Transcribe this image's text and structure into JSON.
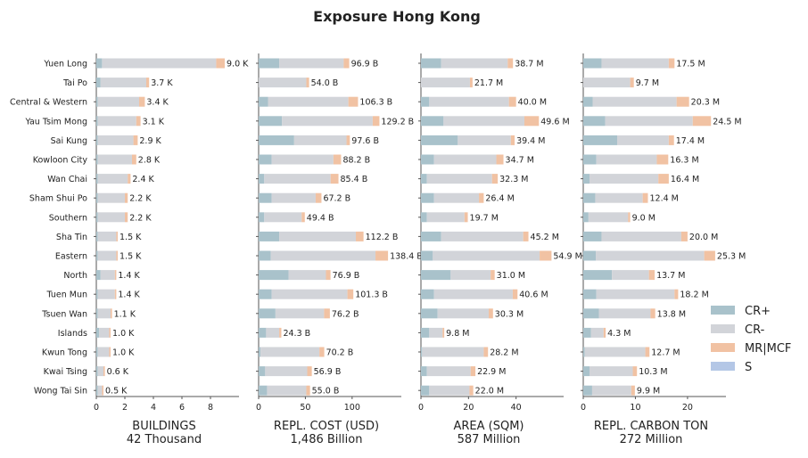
{
  "title": "Exposure Hong Kong",
  "colors": {
    "cr_plus": "#a9c2cb",
    "cr_minus": "#d2d4d9",
    "mr_mcf": "#f1c2a3",
    "s": "#b4c7e6",
    "axis": "#555555",
    "text": "#222222"
  },
  "legend": [
    {
      "key": "cr_plus",
      "label": "CR+"
    },
    {
      "key": "cr_minus",
      "label": "CR-"
    },
    {
      "key": "mr_mcf",
      "label": "MR|MCF"
    },
    {
      "key": "s",
      "label": "S"
    }
  ],
  "chart_data": {
    "type": "bar",
    "orientation": "horizontal",
    "stacked": true,
    "categories": [
      "Yuen Long",
      "Tai Po",
      "Central & Western",
      "Yau Tsim Mong",
      "Sai Kung",
      "Kowloon City",
      "Wan Chai",
      "Sham Shui Po",
      "Southern",
      "Sha Tin",
      "Eastern",
      "North",
      "Tuen Mun",
      "Tsuen Wan",
      "Islands",
      "Kwun Tong",
      "Kwai Tsing",
      "Wong Tai Sin"
    ],
    "panels": [
      {
        "xlabel": "BUILDINGS",
        "subtitle": "42 Thousand",
        "xlim": [
          0,
          9.5
        ],
        "xticks": [
          0,
          2,
          4,
          6,
          8
        ],
        "cr_plus": [
          0.4,
          0.3,
          0.1,
          0.1,
          0.1,
          0.1,
          0.1,
          0.1,
          0.1,
          0.1,
          0.1,
          0.3,
          0.1,
          0.1,
          0.2,
          0.1,
          0.1,
          0.1
        ],
        "cr_minus": [
          8.0,
          3.2,
          2.9,
          2.7,
          2.5,
          2.4,
          2.1,
          1.9,
          1.9,
          1.3,
          1.3,
          1.0,
          1.2,
          0.9,
          0.7,
          0.8,
          0.4,
          0.3
        ],
        "mr_mcf": [
          0.6,
          0.2,
          0.4,
          0.3,
          0.3,
          0.3,
          0.2,
          0.2,
          0.2,
          0.1,
          0.1,
          0.1,
          0.1,
          0.1,
          0.1,
          0.1,
          0.1,
          0.1
        ],
        "totals": [
          9.0,
          3.7,
          3.4,
          3.1,
          2.9,
          2.8,
          2.4,
          2.2,
          2.2,
          1.5,
          1.5,
          1.4,
          1.4,
          1.1,
          1.0,
          1.0,
          0.6,
          0.5
        ],
        "labels": [
          "9.0 K",
          "3.7 K",
          "3.4 K",
          "3.1 K",
          "2.9 K",
          "2.8 K",
          "2.4 K",
          "2.2 K",
          "2.2 K",
          "1.5 K",
          "1.5 K",
          "1.4 K",
          "1.4 K",
          "1.1 K",
          "1.0 K",
          "1.0 K",
          "0.6 K",
          "0.5 K"
        ]
      },
      {
        "xlabel": "REPL. COST (USD)",
        "subtitle": "1,486 Billion",
        "xlim": [
          0,
          145
        ],
        "xticks": [
          0,
          50,
          100
        ],
        "cr_plus": [
          22,
          0,
          10,
          25,
          38,
          14,
          6,
          14,
          6,
          22,
          13,
          32,
          14,
          18,
          8,
          2,
          7,
          9
        ],
        "cr_minus": [
          69,
          51,
          86,
          97,
          56,
          66,
          71,
          47,
          40,
          82,
          112,
          40,
          81,
          52,
          14,
          63,
          45,
          42
        ],
        "mr_mcf": [
          5.9,
          3.0,
          10.3,
          7.2,
          3.6,
          8.2,
          8.4,
          6.2,
          3.4,
          8.2,
          13.4,
          4.9,
          6.3,
          6.2,
          2.3,
          5.2,
          4.9,
          4.0
        ],
        "totals": [
          96.9,
          54.0,
          106.3,
          129.2,
          97.6,
          88.2,
          85.4,
          67.2,
          49.4,
          112.2,
          138.4,
          76.9,
          101.3,
          76.2,
          24.3,
          70.2,
          56.9,
          55.0
        ],
        "labels": [
          "96.9 B",
          "54.0 B",
          "106.3 B",
          "129.2 B",
          "97.6 B",
          "88.2 B",
          "85.4 B",
          "67.2 B",
          "49.4 B",
          "112.2 B",
          "138.4 B",
          "76.9 B",
          "101.3 B",
          "76.2 B",
          "24.3 B",
          "70.2 B",
          "56.9 B",
          "55.0 B"
        ]
      },
      {
        "xlabel": "AREA (SQM)",
        "subtitle": "587 Million",
        "xlim": [
          0,
          57
        ],
        "xticks": [
          0,
          20,
          40
        ],
        "cr_plus": [
          8.5,
          0,
          3.5,
          9.5,
          15.5,
          5.5,
          2.5,
          5.5,
          2.5,
          8.5,
          5,
          12.5,
          5.5,
          7,
          3.5,
          0.5,
          2.5,
          3.5
        ],
        "cr_minus": [
          28,
          20.6,
          33.5,
          34,
          22.3,
          26.2,
          27.4,
          18.9,
          15.8,
          34.5,
          44.9,
          16.8,
          33.1,
          21.5,
          5.6,
          25.9,
          18.4,
          16.9
        ],
        "mr_mcf": [
          2.2,
          1.1,
          3.0,
          6.1,
          1.6,
          3.0,
          2.4,
          2.0,
          1.4,
          2.2,
          5.0,
          1.7,
          2.0,
          1.8,
          0.7,
          1.8,
          2.0,
          1.6
        ],
        "totals": [
          38.7,
          21.7,
          40.0,
          49.6,
          39.4,
          34.7,
          32.3,
          26.4,
          19.7,
          45.2,
          54.9,
          31.0,
          40.6,
          30.3,
          9.8,
          28.2,
          22.9,
          22.0
        ],
        "labels": [
          "38.7 M",
          "21.7 M",
          "40.0 M",
          "49.6 M",
          "39.4 M",
          "34.7 M",
          "32.3 M",
          "26.4 M",
          "19.7 M",
          "45.2 M",
          "54.9 M",
          "31.0 M",
          "40.6 M",
          "30.3 M",
          "9.8 M",
          "28.2 M",
          "22.9 M",
          "22.0 M"
        ]
      },
      {
        "xlabel": "REPL. CARBON TON",
        "subtitle": "272 Million",
        "xlim": [
          0,
          26
        ],
        "xticks": [
          0,
          10,
          20
        ],
        "cr_plus": [
          3.5,
          0,
          1.8,
          4.2,
          6.5,
          2.5,
          1.2,
          2.3,
          1.0,
          3.5,
          2.4,
          5.5,
          2.5,
          3.0,
          1.5,
          0.3,
          1.2,
          1.7
        ],
        "cr_minus": [
          12.9,
          9.0,
          16.1,
          16.8,
          9.9,
          11.6,
          13.2,
          9.1,
          7.6,
          15.3,
          20.8,
          7.1,
          15.0,
          9.9,
          2.4,
          11.6,
          8.3,
          7.5
        ],
        "mr_mcf": [
          1.1,
          0.7,
          2.4,
          3.5,
          1.0,
          2.2,
          2.0,
          1.0,
          0.4,
          1.2,
          2.1,
          1.1,
          0.7,
          0.9,
          0.4,
          0.8,
          0.8,
          0.7
        ],
        "totals": [
          17.5,
          9.7,
          20.3,
          24.5,
          17.4,
          16.3,
          16.4,
          12.4,
          9.0,
          20.0,
          25.3,
          13.7,
          18.2,
          13.8,
          4.3,
          12.7,
          10.3,
          9.9
        ],
        "labels": [
          "17.5 M",
          "9.7 M",
          "20.3 M",
          "24.5 M",
          "17.4 M",
          "16.3 M",
          "16.4 M",
          "12.4 M",
          "9.0 M",
          "20.0 M",
          "25.3 M",
          "13.7 M",
          "18.2 M",
          "13.8 M",
          "4.3 M",
          "12.7 M",
          "10.3 M",
          "9.9 M"
        ]
      }
    ]
  }
}
